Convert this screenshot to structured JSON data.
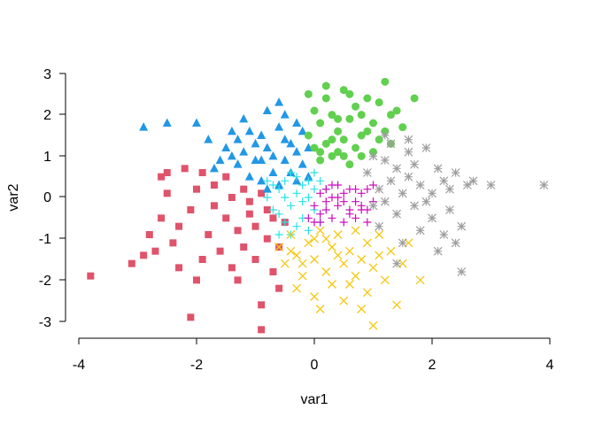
{
  "chart_data": {
    "type": "scatter",
    "title": "",
    "xlabel": "var1",
    "ylabel": "var2",
    "xlim": [
      -4,
      4
    ],
    "ylim": [
      -3,
      3
    ],
    "x_ticks": [
      "-4",
      "-2",
      "0",
      "2",
      "4"
    ],
    "y_ticks": [
      "-3",
      "-2",
      "-1",
      "0",
      "1",
      "2",
      "3"
    ],
    "grid": false,
    "legend": "none",
    "series": [
      {
        "color": "#DF536B",
        "marker": "square",
        "points": [
          [
            -3.8,
            -1.9
          ],
          [
            -3.1,
            -1.6
          ],
          [
            -2.9,
            -1.4
          ],
          [
            -2.7,
            -1.3
          ],
          [
            -2.6,
            0.5
          ],
          [
            -2.6,
            -0.5
          ],
          [
            -2.5,
            0.1
          ],
          [
            -2.4,
            -1.1
          ],
          [
            -2.3,
            -0.7
          ],
          [
            -2.2,
            0.7
          ],
          [
            -2.1,
            -0.3
          ],
          [
            -2.0,
            0.2
          ],
          [
            -2.0,
            -2.0
          ],
          [
            -2.1,
            -2.9
          ],
          [
            -1.9,
            0.6
          ],
          [
            -1.8,
            -0.9
          ],
          [
            -1.7,
            0.3
          ],
          [
            -1.7,
            -0.2
          ],
          [
            -1.6,
            -1.3
          ],
          [
            -1.5,
            0.5
          ],
          [
            -1.5,
            -0.5
          ],
          [
            -1.4,
            0.0
          ],
          [
            -1.4,
            -1.7
          ],
          [
            -1.3,
            -0.8
          ],
          [
            -1.2,
            0.2
          ],
          [
            -1.2,
            -1.2
          ],
          [
            -1.1,
            -0.4
          ],
          [
            -1.1,
            -0.1
          ],
          [
            -1.0,
            -1.5
          ],
          [
            -1.0,
            -0.7
          ],
          [
            -0.9,
            0.1
          ],
          [
            -0.9,
            -2.6
          ],
          [
            -0.8,
            -0.3
          ],
          [
            -0.8,
            -1.0
          ],
          [
            -0.7,
            -1.8
          ],
          [
            -0.7,
            -0.5
          ],
          [
            -0.6,
            -2.2
          ],
          [
            -0.6,
            -1.2
          ],
          [
            -0.5,
            -0.6
          ],
          [
            -0.9,
            -3.2
          ],
          [
            -2.3,
            -1.7
          ],
          [
            -1.9,
            -1.5
          ],
          [
            -2.8,
            -0.9
          ],
          [
            -2.5,
            0.6
          ],
          [
            -1.3,
            -2.0
          ]
        ]
      },
      {
        "color": "#2297E6",
        "marker": "triangle",
        "points": [
          [
            -2.9,
            1.7
          ],
          [
            -2.5,
            1.8
          ],
          [
            -2.0,
            1.8
          ],
          [
            -1.8,
            1.4
          ],
          [
            -1.6,
            0.9
          ],
          [
            -1.5,
            1.2
          ],
          [
            -1.4,
            1.6
          ],
          [
            -1.3,
            0.8
          ],
          [
            -1.2,
            1.1
          ],
          [
            -1.2,
            1.9
          ],
          [
            -1.1,
            0.5
          ],
          [
            -1.0,
            1.3
          ],
          [
            -1.0,
            0.9
          ],
          [
            -0.9,
            0.4
          ],
          [
            -0.9,
            1.5
          ],
          [
            -0.8,
            2.1
          ],
          [
            -0.8,
            0.2
          ],
          [
            -0.7,
            1.0
          ],
          [
            -0.7,
            0.6
          ],
          [
            -0.6,
            1.7
          ],
          [
            -0.6,
            0.3
          ],
          [
            -0.5,
            2.0
          ],
          [
            -0.5,
            0.9
          ],
          [
            -0.4,
            1.3
          ],
          [
            -0.4,
            0.6
          ],
          [
            -0.3,
            1.1
          ],
          [
            -0.3,
            0.4
          ],
          [
            -0.2,
            1.6
          ],
          [
            -0.2,
            0.8
          ],
          [
            -0.1,
            1.2
          ],
          [
            -0.1,
            0.5
          ],
          [
            -0.6,
            2.3
          ],
          [
            -0.5,
            1.4
          ],
          [
            -0.8,
            1.2
          ],
          [
            -1.1,
            1.6
          ],
          [
            -1.4,
            1.0
          ],
          [
            -1.7,
            0.7
          ],
          [
            -0.9,
            0.9
          ],
          [
            -1.3,
            1.4
          ],
          [
            -0.3,
            1.8
          ]
        ]
      },
      {
        "color": "#61D04F",
        "marker": "circle",
        "points": [
          [
            -0.1,
            1.5
          ],
          [
            0.0,
            2.1
          ],
          [
            0.0,
            1.2
          ],
          [
            0.1,
            0.9
          ],
          [
            0.1,
            1.8
          ],
          [
            0.2,
            2.4
          ],
          [
            0.2,
            1.3
          ],
          [
            0.3,
            1.0
          ],
          [
            0.3,
            2.0
          ],
          [
            0.4,
            1.6
          ],
          [
            0.4,
            1.1
          ],
          [
            0.5,
            2.6
          ],
          [
            0.5,
            1.4
          ],
          [
            0.6,
            0.8
          ],
          [
            0.6,
            1.9
          ],
          [
            0.7,
            1.2
          ],
          [
            0.7,
            2.2
          ],
          [
            0.8,
            1.5
          ],
          [
            0.8,
            1.0
          ],
          [
            0.9,
            2.4
          ],
          [
            1.0,
            1.8
          ],
          [
            1.0,
            1.1
          ],
          [
            1.1,
            2.3
          ],
          [
            1.1,
            1.4
          ],
          [
            1.2,
            2.8
          ],
          [
            1.3,
            2.0
          ],
          [
            1.3,
            1.3
          ],
          [
            1.4,
            2.1
          ],
          [
            1.5,
            1.7
          ],
          [
            1.7,
            2.4
          ],
          [
            -0.1,
            2.5
          ],
          [
            0.2,
            2.7
          ],
          [
            0.6,
            2.5
          ],
          [
            0.9,
            1.6
          ],
          [
            0.4,
            1.9
          ],
          [
            0.8,
            2.0
          ],
          [
            0.3,
            1.4
          ],
          [
            0.1,
            1.1
          ],
          [
            1.2,
            1.6
          ],
          [
            0.5,
            1.0
          ]
        ]
      },
      {
        "color": "#28E2E5",
        "marker": "plus",
        "points": [
          [
            -0.8,
            0.0
          ],
          [
            -0.7,
            -0.3
          ],
          [
            -0.6,
            0.2
          ],
          [
            -0.5,
            -0.6
          ],
          [
            -0.5,
            0.4
          ],
          [
            -0.4,
            -0.2
          ],
          [
            -0.4,
            -0.9
          ],
          [
            -0.3,
            0.5
          ],
          [
            -0.3,
            0.1
          ],
          [
            -0.2,
            -0.5
          ],
          [
            -0.2,
            0.3
          ],
          [
            -0.1,
            -0.8
          ],
          [
            -0.1,
            0.0
          ],
          [
            0.0,
            0.6
          ],
          [
            0.0,
            -0.3
          ],
          [
            0.1,
            0.4
          ],
          [
            0.1,
            -0.6
          ],
          [
            0.2,
            0.2
          ],
          [
            -0.6,
            -0.4
          ],
          [
            -0.5,
            0.0
          ],
          [
            -0.7,
            0.3
          ],
          [
            -0.3,
            -0.7
          ],
          [
            -0.4,
            0.6
          ],
          [
            -0.2,
            -0.1
          ],
          [
            0.0,
            0.2
          ],
          [
            -0.6,
            -0.9
          ],
          [
            -0.1,
            0.4
          ],
          [
            -0.8,
            0.4
          ]
        ]
      },
      {
        "color": "#CD0BBC",
        "marker": "plus",
        "points": [
          [
            -0.1,
            -0.5
          ],
          [
            0.0,
            -0.2
          ],
          [
            0.1,
            -0.6
          ],
          [
            0.1,
            0.1
          ],
          [
            0.2,
            -0.3
          ],
          [
            0.2,
            0.2
          ],
          [
            0.3,
            -0.5
          ],
          [
            0.3,
            0.0
          ],
          [
            0.4,
            -0.2
          ],
          [
            0.4,
            0.3
          ],
          [
            0.5,
            -0.6
          ],
          [
            0.5,
            0.1
          ],
          [
            0.6,
            -0.3
          ],
          [
            0.6,
            0.2
          ],
          [
            0.7,
            -0.1
          ],
          [
            0.7,
            -0.5
          ],
          [
            0.8,
            0.1
          ],
          [
            0.8,
            -0.3
          ],
          [
            0.9,
            0.2
          ],
          [
            0.9,
            -0.6
          ],
          [
            1.0,
            -0.1
          ],
          [
            1.0,
            0.3
          ],
          [
            0.2,
            -0.1
          ],
          [
            0.4,
            0.0
          ],
          [
            0.6,
            -0.4
          ],
          [
            0.8,
            -0.2
          ],
          [
            0.3,
            0.3
          ],
          [
            0.5,
            -0.1
          ],
          [
            0.7,
            0.2
          ],
          [
            0.1,
            -0.4
          ],
          [
            0.9,
            -0.3
          ],
          [
            0.0,
            -0.6
          ]
        ]
      },
      {
        "color": "#F5C710",
        "marker": "cross",
        "points": [
          [
            -0.6,
            -1.2
          ],
          [
            -0.5,
            -1.6
          ],
          [
            -0.4,
            -0.9
          ],
          [
            -0.3,
            -2.2
          ],
          [
            -0.3,
            -1.4
          ],
          [
            -0.2,
            -1.9
          ],
          [
            -0.1,
            -1.1
          ],
          [
            0.0,
            -2.4
          ],
          [
            0.0,
            -1.5
          ],
          [
            0.1,
            -0.8
          ],
          [
            0.1,
            -2.7
          ],
          [
            0.2,
            -1.8
          ],
          [
            0.3,
            -1.2
          ],
          [
            0.3,
            -2.1
          ],
          [
            0.4,
            -0.9
          ],
          [
            0.5,
            -1.6
          ],
          [
            0.5,
            -2.5
          ],
          [
            0.6,
            -1.3
          ],
          [
            0.7,
            -1.9
          ],
          [
            0.7,
            -0.8
          ],
          [
            0.8,
            -1.5
          ],
          [
            0.9,
            -2.3
          ],
          [
            0.9,
            -1.1
          ],
          [
            1.0,
            -1.7
          ],
          [
            1.0,
            -3.1
          ],
          [
            1.1,
            -0.9
          ],
          [
            1.2,
            -2.0
          ],
          [
            1.3,
            -1.3
          ],
          [
            1.4,
            -2.6
          ],
          [
            1.5,
            -1.6
          ],
          [
            1.6,
            -1.1
          ],
          [
            1.8,
            -2.0
          ],
          [
            0.2,
            -1.0
          ],
          [
            0.6,
            -2.1
          ],
          [
            -0.2,
            -1.6
          ],
          [
            0.4,
            -1.4
          ],
          [
            0.8,
            -2.7
          ],
          [
            1.1,
            -1.4
          ],
          [
            -0.4,
            -1.3
          ],
          [
            0.0,
            -1.0
          ]
        ]
      },
      {
        "color": "#9E9E9E",
        "marker": "asterisk",
        "points": [
          [
            0.9,
            0.6
          ],
          [
            1.0,
            -0.2
          ],
          [
            1.0,
            1.0
          ],
          [
            1.1,
            0.2
          ],
          [
            1.1,
            -0.7
          ],
          [
            1.2,
            0.9
          ],
          [
            1.2,
            -0.1
          ],
          [
            1.3,
            0.4
          ],
          [
            1.3,
            1.3
          ],
          [
            1.4,
            -0.4
          ],
          [
            1.4,
            0.7
          ],
          [
            1.5,
            0.1
          ],
          [
            1.5,
            -1.1
          ],
          [
            1.6,
            0.5
          ],
          [
            1.6,
            1.1
          ],
          [
            1.7,
            -0.2
          ],
          [
            1.7,
            0.8
          ],
          [
            1.8,
            0.3
          ],
          [
            1.8,
            -0.8
          ],
          [
            1.9,
            1.2
          ],
          [
            2.0,
            -0.5
          ],
          [
            2.0,
            0.1
          ],
          [
            2.1,
            0.7
          ],
          [
            2.1,
            -1.3
          ],
          [
            2.2,
            0.4
          ],
          [
            2.3,
            -0.3
          ],
          [
            2.3,
            0.2
          ],
          [
            2.4,
            0.6
          ],
          [
            2.4,
            -1.1
          ],
          [
            2.5,
            -0.7
          ],
          [
            2.5,
            -1.8
          ],
          [
            2.6,
            0.3
          ],
          [
            2.7,
            0.4
          ],
          [
            3.0,
            0.3
          ],
          [
            3.9,
            0.3
          ],
          [
            1.2,
            1.5
          ],
          [
            1.6,
            1.4
          ],
          [
            1.4,
            -1.6
          ],
          [
            1.9,
            -0.1
          ],
          [
            2.2,
            -0.9
          ]
        ]
      }
    ]
  }
}
